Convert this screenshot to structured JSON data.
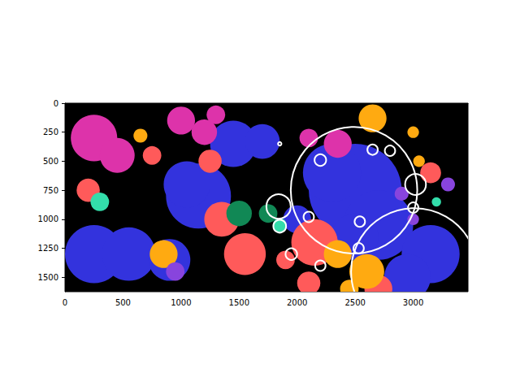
{
  "chart_data": {
    "type": "image",
    "xlim": [
      0,
      3472
    ],
    "ylim": [
      1624,
      0
    ],
    "xticks": [
      0,
      500,
      1000,
      1500,
      2000,
      2500,
      3000
    ],
    "yticks": [
      0,
      250,
      500,
      750,
      1000,
      1250,
      1500
    ],
    "regions": {
      "x": [
        1150,
        1050,
        250,
        550,
        900,
        2500,
        2300,
        2700,
        3150,
        1450,
        1700,
        2000,
        2950,
        2500,
        250,
        450,
        1000,
        1200,
        2350,
        2100,
        1300,
        1350,
        1550,
        2150,
        1250,
        750,
        200,
        2100,
        2700,
        3150,
        1900,
        850,
        2600,
        2350,
        650,
        2650,
        3000,
        3050,
        2450,
        300,
        1850,
        3200,
        1500,
        1750,
        950,
        2900,
        3300,
        3000
      ],
      "y": [
        800,
        700,
        1300,
        1300,
        1350,
        750,
        600,
        1050,
        1300,
        350,
        330,
        1000,
        1500,
        1150,
        300,
        450,
        150,
        250,
        350,
        300,
        100,
        1000,
        1300,
        1200,
        500,
        450,
        750,
        1550,
        1600,
        600,
        1350,
        1300,
        1450,
        1300,
        280,
        130,
        250,
        500,
        1600,
        850,
        1050,
        850,
        950,
        950,
        1450,
        780,
        700,
        1000
      ],
      "r": [
        280,
        200,
        250,
        230,
        180,
        400,
        250,
        300,
        250,
        200,
        150,
        120,
        200,
        200,
        200,
        150,
        120,
        110,
        120,
        80,
        80,
        150,
        180,
        200,
        100,
        80,
        100,
        100,
        120,
        90,
        80,
        120,
        150,
        120,
        60,
        120,
        50,
        50,
        80,
        80,
        60,
        40,
        110,
        80,
        80,
        60,
        60,
        50
      ],
      "colors": [
        "#3333dd",
        "#3333dd",
        "#3333dd",
        "#3333dd",
        "#3333dd",
        "#3333dd",
        "#3333dd",
        "#3333dd",
        "#3333dd",
        "#3333dd",
        "#3333dd",
        "#3333dd",
        "#3333dd",
        "#3333dd",
        "#dd33aa",
        "#dd33aa",
        "#dd33aa",
        "#dd33aa",
        "#dd33aa",
        "#dd33aa",
        "#dd33aa",
        "#ff5a5a",
        "#ff5a5a",
        "#ff5a5a",
        "#ff5a5a",
        "#ff5a5a",
        "#ff5a5a",
        "#ff5a5a",
        "#ff5a5a",
        "#ff5a5a",
        "#ff5a5a",
        "#ffaa11",
        "#ffaa11",
        "#ffaa11",
        "#ffaa11",
        "#ffaa11",
        "#ffaa11",
        "#ffaa11",
        "#ffaa11",
        "#33ddaa",
        "#33ddaa",
        "#33ddaa",
        "#118855",
        "#118855",
        "#8844dd",
        "#8844dd",
        "#8844dd",
        "#8844dd"
      ]
    },
    "circles": {
      "x": [
        1850,
        2200,
        2650,
        2800,
        2490,
        3010,
        3020,
        3000,
        1840,
        1850,
        2100,
        2540,
        2530,
        1950,
        2200
      ],
      "y": [
        350,
        490,
        400,
        410,
        750,
        1450,
        700,
        900,
        890,
        1060,
        980,
        1020,
        1250,
        1300,
        1400
      ],
      "r": [
        15,
        50,
        45,
        45,
        545,
        545,
        90,
        45,
        105,
        55,
        45,
        45,
        45,
        50,
        45
      ]
    }
  }
}
